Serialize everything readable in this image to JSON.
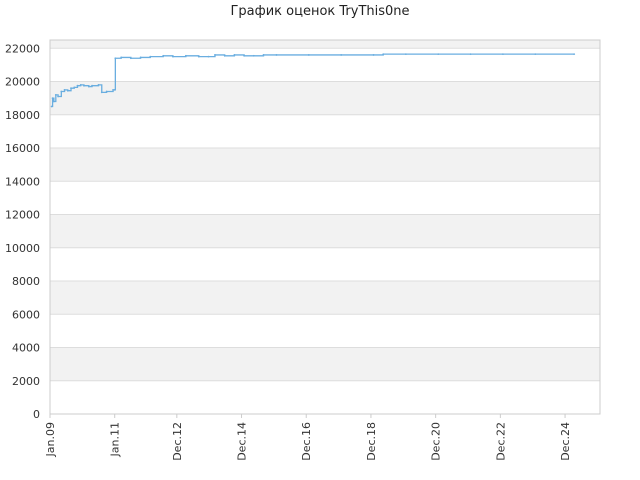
{
  "chart_data": {
    "type": "line",
    "title": "График оценок TryThis0ne",
    "xlabel": "",
    "ylabel": "",
    "ylim": [
      0,
      22500
    ],
    "y_ticks": [
      0,
      2000,
      4000,
      6000,
      8000,
      10000,
      12000,
      14000,
      16000,
      18000,
      20000,
      22000
    ],
    "x_ticks": [
      {
        "label": "Jan.09",
        "x": 2009.0
      },
      {
        "label": "Jan.11",
        "x": 2011.0
      },
      {
        "label": "Dec.12",
        "x": 2012.92
      },
      {
        "label": "Dec.14",
        "x": 2014.92
      },
      {
        "label": "Dec.16",
        "x": 2016.92
      },
      {
        "label": "Dec.18",
        "x": 2018.92
      },
      {
        "label": "Dec.20",
        "x": 2020.92
      },
      {
        "label": "Dec.22",
        "x": 2022.92
      },
      {
        "label": "Dec.24",
        "x": 2024.92
      }
    ],
    "xlim": [
      2009.0,
      2026.0
    ],
    "grid": true,
    "colors": {
      "line": "#6aaee0",
      "band_odd": "#f2f2f2",
      "band_even": "#ffffff",
      "grid": "#dddddd",
      "axis": "#cccccc"
    },
    "series": [
      {
        "name": "",
        "points": [
          [
            2009.05,
            18500
          ],
          [
            2009.08,
            19000
          ],
          [
            2009.12,
            18800
          ],
          [
            2009.18,
            19200
          ],
          [
            2009.25,
            19100
          ],
          [
            2009.35,
            19400
          ],
          [
            2009.45,
            19500
          ],
          [
            2009.55,
            19450
          ],
          [
            2009.65,
            19600
          ],
          [
            2009.75,
            19650
          ],
          [
            2009.85,
            19750
          ],
          [
            2009.95,
            19800
          ],
          [
            2010.05,
            19750
          ],
          [
            2010.2,
            19700
          ],
          [
            2010.3,
            19750
          ],
          [
            2010.5,
            19800
          ],
          [
            2010.6,
            19350
          ],
          [
            2010.75,
            19400
          ],
          [
            2010.95,
            19500
          ],
          [
            2011.0,
            19500
          ],
          [
            2011.02,
            21400
          ],
          [
            2011.2,
            21450
          ],
          [
            2011.5,
            21400
          ],
          [
            2011.8,
            21450
          ],
          [
            2012.1,
            21500
          ],
          [
            2012.5,
            21550
          ],
          [
            2012.8,
            21500
          ],
          [
            2013.2,
            21550
          ],
          [
            2013.6,
            21500
          ],
          [
            2013.9,
            21500
          ],
          [
            2014.1,
            21600
          ],
          [
            2014.4,
            21550
          ],
          [
            2014.7,
            21600
          ],
          [
            2015.0,
            21550
          ],
          [
            2015.3,
            21550
          ],
          [
            2015.6,
            21600
          ],
          [
            2016.0,
            21600
          ],
          [
            2017.0,
            21600
          ],
          [
            2018.0,
            21600
          ],
          [
            2019.0,
            21600
          ],
          [
            2019.3,
            21650
          ],
          [
            2020.0,
            21650
          ],
          [
            2021.0,
            21650
          ],
          [
            2022.0,
            21650
          ],
          [
            2023.0,
            21650
          ],
          [
            2024.0,
            21650
          ],
          [
            2025.2,
            21650
          ]
        ]
      }
    ]
  }
}
